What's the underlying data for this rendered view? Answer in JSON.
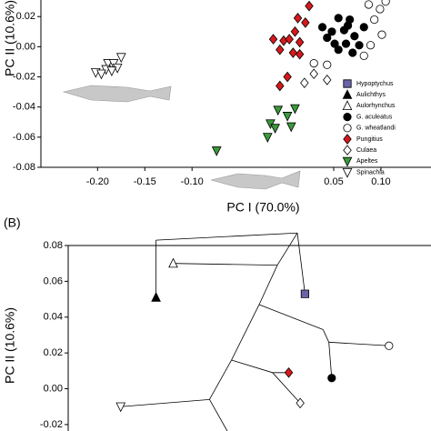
{
  "chart_data": [
    {
      "type": "scatter",
      "x_label": "PC I (70.0%)",
      "y_label": "PC II (10.6%)",
      "xlim": [
        -0.26,
        0.153
      ],
      "ylim": [
        -0.08,
        0.031
      ],
      "xticks": [
        {
          "value": -0.2,
          "label": "-0.20"
        },
        -0.15,
        {
          "value": -0.1,
          "label": "-0.10"
        },
        0.05,
        {
          "value": 0.1,
          "label": "0.10"
        }
      ],
      "yticks": [
        0.02,
        {
          "value": 0,
          "label": "0.00"
        },
        -0.02,
        -0.04,
        -0.06,
        -0.08
      ],
      "legend": "right",
      "series": [
        {
          "name": "Hypoptychus",
          "marker": "square",
          "color": "#6a63a8",
          "x": [],
          "y": []
        },
        {
          "name": "Aulichthys",
          "marker": "triangle-up",
          "color": "#000000",
          "x": [],
          "y": []
        },
        {
          "name": "Aulorhynchus",
          "marker": "triangle-up",
          "color": "#ffffff",
          "x": [],
          "y": []
        },
        {
          "name": "G. aculeatus",
          "marker": "circle",
          "color": "#000000",
          "x": [
            0.055,
            0.067,
            0.038,
            0.048,
            0.061,
            0.072,
            0.063,
            0.051,
            0.077,
            0.055,
            0.07,
            0.043,
            0.082,
            0.065
          ],
          "y": [
            0.019,
            0.018,
            0.013,
            0.01,
            0.011,
            0.007,
            0.002,
            0.002,
            0.001,
            -0.002,
            -0.004,
            0.006,
            0.013,
            0.014
          ]
        },
        {
          "name": "G. wheatlandi",
          "marker": "circle",
          "color": "#ffffff",
          "x": [
            0.087,
            0.099,
            0.105,
            0.093,
            0.101,
            0.089,
            0.082,
            0.029,
            0.043
          ],
          "y": [
            0.028,
            0.025,
            0.03,
            0.018,
            0.008,
            0.001,
            -0.006,
            -0.011,
            -0.012
          ]
        },
        {
          "name": "Pungitius",
          "marker": "diamond",
          "color": "#d7191c",
          "x": [
            0.024,
            0.012,
            -0.003,
            0.003,
            0.014,
            -0.014,
            -0.007,
            0.007,
            0.014,
            0.02,
            0.009,
            -0.007,
            0.001
          ],
          "y": [
            0.027,
            0.019,
            0.004,
            0.005,
            0.003,
            0.005,
            -0.002,
            -0.004,
            -0.005,
            0.016,
            0.01,
            -0.026,
            -0.02
          ]
        },
        {
          "name": "Culaea",
          "marker": "diamond",
          "color": "#ffffff",
          "x": [
            0.019,
            0.029,
            0.043
          ],
          "y": [
            -0.024,
            -0.018,
            -0.022
          ]
        },
        {
          "name": "Apeltes",
          "marker": "triangle-down",
          "color": "#3a9a3a",
          "x": [
            -0.017,
            0.001,
            -0.012,
            0.009,
            -0.009,
            -0.02,
            -0.074,
            0.005
          ],
          "y": [
            -0.051,
            -0.046,
            -0.054,
            -0.041,
            -0.042,
            -0.06,
            -0.069,
            -0.053
          ]
        },
        {
          "name": "Spinachia",
          "marker": "triangle-down",
          "color": "#ffffff",
          "x": [
            -0.175,
            -0.189,
            -0.183,
            -0.179,
            -0.191,
            -0.185,
            -0.202,
            -0.196
          ],
          "y": [
            -0.007,
            -0.011,
            -0.011,
            -0.014,
            -0.015,
            -0.016,
            -0.017,
            -0.018
          ]
        }
      ]
    },
    {
      "type": "scatter",
      "panel_label": "(B)",
      "y_label": "PC II (10.6%)",
      "xlim": [
        -0.24,
        0.14
      ],
      "ylim": [
        -0.0236,
        0.08
      ],
      "yticks": [
        0.08,
        0.06,
        0.04,
        0.02,
        {
          "value": 0,
          "label": "0.00"
        },
        -0.02
      ],
      "segments": [
        [
          0.0,
          0.087,
          -0.148,
          0.083
        ],
        [
          -0.148,
          0.083,
          -0.148,
          0.051
        ],
        [
          0.0,
          0.087,
          0.008,
          0.053
        ],
        [
          0.0,
          0.087,
          -0.021,
          0.069
        ],
        [
          -0.021,
          0.069,
          -0.13,
          0.07
        ],
        [
          -0.021,
          0.069,
          -0.04,
          0.047
        ],
        [
          -0.04,
          0.047,
          0.027,
          0.033
        ],
        [
          0.027,
          0.033,
          0.033,
          0.026
        ],
        [
          0.033,
          0.026,
          0.036,
          0.006
        ],
        [
          0.033,
          0.026,
          0.096,
          0.024
        ],
        [
          -0.04,
          0.047,
          -0.069,
          0.016
        ],
        [
          -0.069,
          0.016,
          -0.026,
          0.009
        ],
        [
          -0.026,
          0.009,
          -0.009,
          0.009
        ],
        [
          -0.026,
          0.009,
          0.003,
          -0.008
        ],
        [
          -0.069,
          0.016,
          -0.092,
          -0.006
        ],
        [
          -0.092,
          -0.006,
          -0.185,
          -0.01
        ],
        [
          -0.092,
          -0.006,
          -0.073,
          -0.024
        ]
      ],
      "series": [
        {
          "marker": "square",
          "color": "#6a63a8",
          "x": [
            0.008
          ],
          "y": [
            0.053
          ]
        },
        {
          "marker": "triangle-up",
          "color": "#000000",
          "x": [
            -0.148
          ],
          "y": [
            0.051
          ]
        },
        {
          "marker": "triangle-up",
          "color": "#ffffff",
          "x": [
            -0.13
          ],
          "y": [
            0.07
          ]
        },
        {
          "marker": "circle",
          "color": "#000000",
          "x": [
            0.036
          ],
          "y": [
            0.006
          ]
        },
        {
          "marker": "circle",
          "color": "#ffffff",
          "x": [
            0.096
          ],
          "y": [
            0.024
          ]
        },
        {
          "marker": "diamond",
          "color": "#d7191c",
          "x": [
            -0.009
          ],
          "y": [
            0.009
          ]
        },
        {
          "marker": "diamond",
          "color": "#ffffff",
          "x": [
            0.003
          ],
          "y": [
            -0.008
          ]
        },
        {
          "marker": "triangle-down",
          "color": "#ffffff",
          "x": [
            -0.185
          ],
          "y": [
            -0.01
          ]
        }
      ]
    }
  ]
}
